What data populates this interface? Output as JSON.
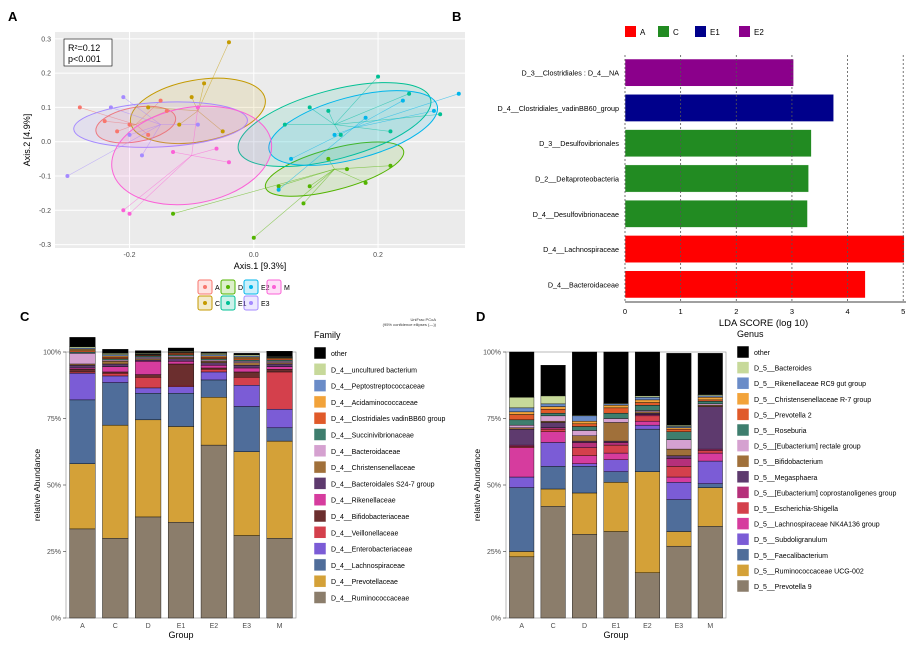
{
  "chart_data": [
    {
      "panel": "A",
      "type": "scatter",
      "xlabel": "Axis.1   [9.3%]",
      "ylabel": "Axis.2   [4.9%]",
      "xlim": [
        -0.32,
        0.34
      ],
      "ylim": [
        -0.31,
        0.32
      ],
      "x_ticks": [
        -0.2,
        0.0,
        0.2
      ],
      "x_tick_labels": [
        "-0.2",
        "0.0",
        "0.2"
      ],
      "y_ticks": [
        -0.3,
        -0.2,
        -0.1,
        0.0,
        0.1,
        0.2,
        0.3
      ],
      "y_tick_labels": [
        "-0.3",
        "-0.2",
        "-0.1",
        "0.0",
        "0.1",
        "0.2",
        "0.3"
      ],
      "stats": [
        "R²=0.12",
        "p<0.001"
      ],
      "footnote": [
        "UniFrac PCoA",
        "(95% confidence ellipses (—))"
      ],
      "grid": true,
      "legend_position": "bottom",
      "series": [
        {
          "name": "A",
          "color": "#F8766D",
          "centroid": [
            -0.19,
            0.05
          ],
          "ellipse": {
            "rx": 0.065,
            "ry": 0.05,
            "angle": -10
          },
          "points": [
            [
              -0.28,
              0.1
            ],
            [
              -0.24,
              0.06
            ],
            [
              -0.22,
              0.03
            ],
            [
              -0.17,
              0.02
            ],
            [
              -0.15,
              0.12
            ],
            [
              -0.14,
              0.09
            ],
            [
              -0.2,
              0.05
            ]
          ]
        },
        {
          "name": "C",
          "color": "#C49A00",
          "centroid": [
            -0.09,
            0.09
          ],
          "ellipse": {
            "rx": 0.11,
            "ry": 0.09,
            "angle": -10
          },
          "points": [
            [
              -0.04,
              0.29
            ],
            [
              -0.08,
              0.17
            ],
            [
              -0.17,
              0.1
            ],
            [
              -0.12,
              0.05
            ],
            [
              -0.05,
              0.03
            ],
            [
              -0.1,
              0.13
            ]
          ]
        },
        {
          "name": "D",
          "color": "#53B400",
          "centroid": [
            0.13,
            -0.08
          ],
          "ellipse": {
            "rx": 0.115,
            "ry": 0.06,
            "angle": -15
          },
          "points": [
            [
              0.04,
              -0.13
            ],
            [
              0.09,
              -0.13
            ],
            [
              0.15,
              -0.08
            ],
            [
              0.22,
              -0.07
            ],
            [
              0.12,
              -0.05
            ],
            [
              0.08,
              -0.18
            ],
            [
              -0.13,
              -0.21
            ],
            [
              0.0,
              -0.28
            ],
            [
              0.18,
              -0.12
            ]
          ]
        },
        {
          "name": "E1",
          "color": "#00C094",
          "centroid": [
            0.13,
            0.05
          ],
          "ellipse": {
            "rx": 0.16,
            "ry": 0.1,
            "angle": -15
          },
          "points": [
            [
              0.2,
              0.19
            ],
            [
              0.25,
              0.14
            ],
            [
              0.3,
              0.08
            ],
            [
              0.14,
              0.02
            ],
            [
              0.05,
              0.05
            ],
            [
              0.09,
              0.1
            ],
            [
              0.22,
              0.03
            ],
            [
              0.12,
              0.09
            ]
          ]
        },
        {
          "name": "E2",
          "color": "#00B6EB",
          "centroid": [
            0.16,
            0.04
          ],
          "ellipse": {
            "rx": 0.14,
            "ry": 0.09,
            "angle": -15
          },
          "points": [
            [
              0.33,
              0.14
            ],
            [
              0.29,
              0.09
            ],
            [
              0.24,
              0.12
            ],
            [
              0.04,
              -0.14
            ],
            [
              0.13,
              0.02
            ],
            [
              0.18,
              0.07
            ],
            [
              0.06,
              -0.05
            ]
          ]
        },
        {
          "name": "E3",
          "color": "#A58AFF",
          "centroid": [
            -0.15,
            0.05
          ],
          "ellipse": {
            "rx": 0.14,
            "ry": 0.065,
            "angle": -3
          },
          "points": [
            [
              -0.3,
              -0.1
            ],
            [
              -0.23,
              0.1
            ],
            [
              -0.21,
              0.13
            ],
            [
              -0.18,
              -0.04
            ],
            [
              -0.09,
              0.05
            ],
            [
              -0.2,
              0.02
            ]
          ]
        },
        {
          "name": "M",
          "color": "#FB61D7",
          "centroid": [
            -0.1,
            -0.04
          ],
          "ellipse": {
            "rx": 0.13,
            "ry": 0.14,
            "angle": -10
          },
          "points": [
            [
              -0.2,
              -0.21
            ],
            [
              -0.13,
              -0.03
            ],
            [
              -0.06,
              -0.02
            ],
            [
              -0.09,
              0.1
            ],
            [
              -0.21,
              -0.2
            ],
            [
              -0.04,
              -0.06
            ]
          ]
        }
      ]
    },
    {
      "panel": "B",
      "type": "bar",
      "orientation": "horizontal",
      "xlabel": "LDA SCORE (log 10)",
      "xlim": [
        0,
        5.05
      ],
      "x_ticks": [
        0,
        1,
        2,
        3,
        4,
        5
      ],
      "legend_position": "top",
      "legend": [
        {
          "name": "A",
          "color": "#FF0000"
        },
        {
          "name": "C",
          "color": "#228B22"
        },
        {
          "name": "E1",
          "color": "#00008B"
        },
        {
          "name": "E2",
          "color": "#8B008B"
        }
      ],
      "categories": [
        "D_3__Clostridiales : D_4__NA",
        "D_4__Clostridiales_vadinBB60_group",
        "D_3__Desulfovibrionales",
        "D_2__Deltaproteobacteria",
        "D_4__Desulfovibrionaceae",
        "D_4__Lachnospiraceae",
        "D_4__Bacteroidaceae"
      ],
      "values": [
        3.03,
        3.75,
        3.35,
        3.3,
        3.28,
        5.02,
        4.32
      ],
      "groups": [
        "E2",
        "E1",
        "C",
        "C",
        "C",
        "A",
        "A"
      ]
    },
    {
      "panel": "C",
      "type": "bar",
      "stacked": true,
      "xlabel": "Group",
      "ylabel": "relative Abundance",
      "ylim": [
        0,
        1
      ],
      "y_tick_labels": [
        "0%",
        "25%",
        "50%",
        "75%",
        "100%"
      ],
      "categories": [
        "A",
        "C",
        "D",
        "E1",
        "E2",
        "E3",
        "M"
      ],
      "legend_title": "Family",
      "legend_position": "right",
      "series": [
        {
          "name": "D_4__Ruminococcaceae",
          "color": "#8B7D6B",
          "values": [
            0.335,
            0.3,
            0.38,
            0.36,
            0.65,
            0.31,
            0.3
          ]
        },
        {
          "name": "D_4__Prevotellaceae",
          "color": "#D4A138",
          "values": [
            0.245,
            0.425,
            0.365,
            0.36,
            0.18,
            0.315,
            0.365
          ]
        },
        {
          "name": "D_4__Lachnospiraceae",
          "color": "#4F6D9A",
          "values": [
            0.24,
            0.16,
            0.1,
            0.125,
            0.065,
            0.17,
            0.05
          ]
        },
        {
          "name": "D_4__Enterobacteriaceae",
          "color": "#7B5CD6",
          "values": [
            0.1,
            0.025,
            0.02,
            0.025,
            0.03,
            0.08,
            0.07
          ]
        },
        {
          "name": "D_4__Veillonellaceae",
          "color": "#D4404C",
          "values": [
            0.005,
            0.01,
            0.04,
            0.005,
            0.01,
            0.03,
            0.14
          ]
        },
        {
          "name": "D_4__Bifidobacteriaceae",
          "color": "#6B2E2E",
          "values": [
            0.01,
            0.005,
            0.01,
            0.08,
            0.005,
            0.02,
            0.01
          ]
        },
        {
          "name": "D_4__Rikenellaceae",
          "color": "#D63C9E",
          "values": [
            0.005,
            0.02,
            0.05,
            0.01,
            0.01,
            0.015,
            0.01
          ]
        },
        {
          "name": "D_4__Bacteroidales S24-7 group",
          "color": "#5E3A6E",
          "values": [
            0.01,
            0.01,
            0.005,
            0.01,
            0.01,
            0.01,
            0.01
          ]
        },
        {
          "name": "D_4__Christensenellaceae",
          "color": "#A0703A",
          "values": [
            0.005,
            0.01,
            0.005,
            0.005,
            0.005,
            0.01,
            0.005
          ]
        },
        {
          "name": "D_4__Bacteroidaceae",
          "color": "#D5A1D0",
          "values": [
            0.04,
            0.005,
            0.005,
            0.005,
            0.005,
            0.005,
            0.005
          ]
        },
        {
          "name": "D_4__Succinivibrionaceae",
          "color": "#3E7E6E",
          "values": [
            0.005,
            0.005,
            0.005,
            0.005,
            0.005,
            0.005,
            0.005
          ]
        },
        {
          "name": "D_4__Clostridiales vadinBB60 group",
          "color": "#E05A2A",
          "values": [
            0.005,
            0.005,
            0.003,
            0.005,
            0.005,
            0.005,
            0.005
          ]
        },
        {
          "name": "D_4__Acidaminococcaceae",
          "color": "#F2A33A",
          "values": [
            0.005,
            0.005,
            0.002,
            0.003,
            0.005,
            0.005,
            0.003
          ]
        },
        {
          "name": "D_4__Peptostreptococcaceae",
          "color": "#6A8CC8",
          "values": [
            0.005,
            0.005,
            0.002,
            0.002,
            0.005,
            0.005,
            0.002
          ]
        },
        {
          "name": "D_4__uncultured bacterium",
          "color": "#C7D99A",
          "values": [
            0.005,
            0.005,
            0.003,
            0.003,
            0.005,
            0.005,
            0.003
          ]
        },
        {
          "name": "other",
          "color": "#000000",
          "values": [
            0.035,
            0.015,
            0.01,
            0.012,
            0.005,
            0.005,
            0.02
          ]
        }
      ]
    },
    {
      "panel": "D",
      "type": "bar",
      "stacked": true,
      "xlabel": "Group",
      "ylabel": "relative Abundance",
      "ylim": [
        0,
        1
      ],
      "y_tick_labels": [
        "0%",
        "25%",
        "50%",
        "75%",
        "100%"
      ],
      "categories": [
        "A",
        "C",
        "D",
        "E1",
        "E2",
        "E3",
        "M"
      ],
      "legend_title": "Genus",
      "legend_position": "right",
      "series": [
        {
          "name": "D_5__Prevotella 9",
          "color": "#8B7D6B",
          "values": [
            0.23,
            0.42,
            0.315,
            0.325,
            0.17,
            0.27,
            0.345
          ]
        },
        {
          "name": "D_5__Ruminococcaceae UCG-002",
          "color": "#D4A138",
          "values": [
            0.02,
            0.065,
            0.155,
            0.185,
            0.38,
            0.055,
            0.145
          ]
        },
        {
          "name": "D_5__Faecalibacterium",
          "color": "#4F6D9A",
          "values": [
            0.24,
            0.085,
            0.1,
            0.04,
            0.16,
            0.12,
            0.015
          ]
        },
        {
          "name": "D_5__Subdoligranulum",
          "color": "#7B5CD6",
          "values": [
            0.04,
            0.09,
            0.01,
            0.045,
            0.015,
            0.065,
            0.085
          ]
        },
        {
          "name": "D_5__Lachnospiraceae NK4A136 group",
          "color": "#D63C9E",
          "values": [
            0.11,
            0.04,
            0.03,
            0.025,
            0.015,
            0.02,
            0.03
          ]
        },
        {
          "name": "D_5__Escherichia-Shigella",
          "color": "#D4404C",
          "values": [
            0.005,
            0.01,
            0.03,
            0.03,
            0.02,
            0.04,
            0.01
          ]
        },
        {
          "name": "D_5__[Eubacterium] coprostanoligenes group",
          "color": "#B5307A",
          "values": [
            0.005,
            0.005,
            0.02,
            0.01,
            0.005,
            0.03,
            0.005
          ]
        },
        {
          "name": "D_5__Megasphaera",
          "color": "#5E3A6E",
          "values": [
            0.06,
            0.02,
            0.005,
            0.005,
            0.005,
            0.01,
            0.16
          ]
        },
        {
          "name": "D_5__Bifidobacterium",
          "color": "#A0703A",
          "values": [
            0.005,
            0.005,
            0.02,
            0.07,
            0.005,
            0.025,
            0.005
          ]
        },
        {
          "name": "D_5__[Eubacterium] rectale group",
          "color": "#D5A1D0",
          "values": [
            0.01,
            0.02,
            0.02,
            0.015,
            0.005,
            0.035,
            0.005
          ]
        },
        {
          "name": "D_5__Roseburia",
          "color": "#3E7E6E",
          "values": [
            0.02,
            0.01,
            0.015,
            0.02,
            0.02,
            0.03,
            0.01
          ]
        },
        {
          "name": "D_5__Prevotella 2",
          "color": "#E05A2A",
          "values": [
            0.02,
            0.015,
            0.01,
            0.02,
            0.01,
            0.01,
            0.005
          ]
        },
        {
          "name": "D_5__Christensenellaceae R-7 group",
          "color": "#F2A33A",
          "values": [
            0.01,
            0.01,
            0.01,
            0.01,
            0.01,
            0.005,
            0.01
          ]
        },
        {
          "name": "D_5__Rikenellaceae RC9 gut group",
          "color": "#6A8CC8",
          "values": [
            0.015,
            0.01,
            0.02,
            0.005,
            0.01,
            0.005,
            0.005
          ]
        },
        {
          "name": "D_5__Bacteroides",
          "color": "#C7D99A",
          "values": [
            0.04,
            0.03,
            0.003,
            0.003,
            0.005,
            0.005,
            0.005
          ]
        },
        {
          "name": "other",
          "color": "#000000",
          "values": [
            0.17,
            0.115,
            0.237,
            0.192,
            0.165,
            0.27,
            0.155
          ]
        }
      ]
    }
  ]
}
